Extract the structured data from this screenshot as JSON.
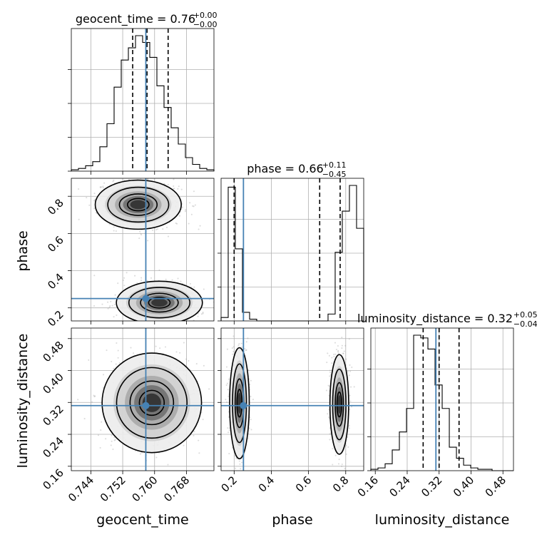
{
  "chart_data": {
    "type": "corner",
    "params": [
      "geocent_time",
      "phase",
      "luminosity_distance"
    ],
    "truths": [
      0.7578,
      0.25,
      0.312
    ],
    "truth_color": "#4682b4",
    "ranges": [
      [
        0.7391,
        0.7749
      ],
      [
        0.1298,
        0.8967
      ],
      [
        0.1489,
        0.5064
      ]
    ],
    "ticks": [
      {
        "values": [
          0.744,
          0.752,
          0.76,
          0.768
        ],
        "labels": [
          "0.744",
          "0.752",
          "0.760",
          "0.768"
        ]
      },
      {
        "values": [
          0.2,
          0.4,
          0.6,
          0.8
        ],
        "labels": [
          "0.2",
          "0.4",
          "0.6",
          "0.8"
        ]
      },
      {
        "values": [
          0.16,
          0.24,
          0.32,
          0.4,
          0.48
        ],
        "labels": [
          "0.16",
          "0.24",
          "0.32",
          "0.40",
          "0.48"
        ]
      }
    ],
    "titles": [
      {
        "main": "geocent_time = 0.76",
        "sup": "+0.00",
        "sub": "−0.00"
      },
      {
        "main": "phase = 0.66",
        "sup": "+0.11",
        "sub": "−0.45"
      },
      {
        "main": "luminosity_distance = 0.32",
        "sup": "+0.05",
        "sub": "−0.04"
      }
    ],
    "quantiles": [
      [
        0.7545,
        0.7581,
        0.7634
      ],
      [
        0.2,
        0.66,
        0.77
      ],
      [
        0.28,
        0.32,
        0.37
      ]
    ],
    "histograms": [
      {
        "edges_start": 0.7391,
        "bin_width": 0.00179,
        "counts": [
          1,
          2,
          4,
          7,
          18,
          35,
          62,
          82,
          91,
          100,
          95,
          84,
          63,
          47,
          32,
          20,
          10,
          5,
          2,
          1
        ]
      },
      {
        "edges_start": 0.1298,
        "bin_width": 0.03834,
        "counts": [
          2,
          78,
          42,
          5,
          1,
          0,
          0,
          0,
          0,
          0,
          0,
          0,
          0,
          0,
          0,
          4,
          40,
          64,
          79,
          54
        ]
      },
      {
        "edges_start": 0.1489,
        "bin_width": 0.01788,
        "counts": [
          1,
          2,
          5,
          15,
          28,
          45,
          98,
          96,
          88,
          62,
          45,
          17,
          9,
          4,
          2,
          1,
          1,
          0,
          0,
          0
        ]
      }
    ],
    "contours": [
      {
        "pair": [
          0,
          1
        ],
        "blobs": [
          {
            "cx": 0.7559,
            "cy": 0.755,
            "sx": 0.0045,
            "sy": 0.055
          },
          {
            "cx": 0.7612,
            "cy": 0.228,
            "sx": 0.0045,
            "sy": 0.048
          }
        ]
      },
      {
        "pair": [
          0,
          2
        ],
        "blobs": [
          {
            "cx": 0.7593,
            "cy": 0.319,
            "sx": 0.0052,
            "sy": 0.052
          }
        ]
      },
      {
        "pair": [
          1,
          2
        ],
        "blobs": [
          {
            "cx": 0.2285,
            "cy": 0.318,
            "sx": 0.022,
            "sy": 0.058
          },
          {
            "cx": 0.7655,
            "cy": 0.315,
            "sx": 0.021,
            "sy": 0.052
          }
        ]
      }
    ]
  }
}
